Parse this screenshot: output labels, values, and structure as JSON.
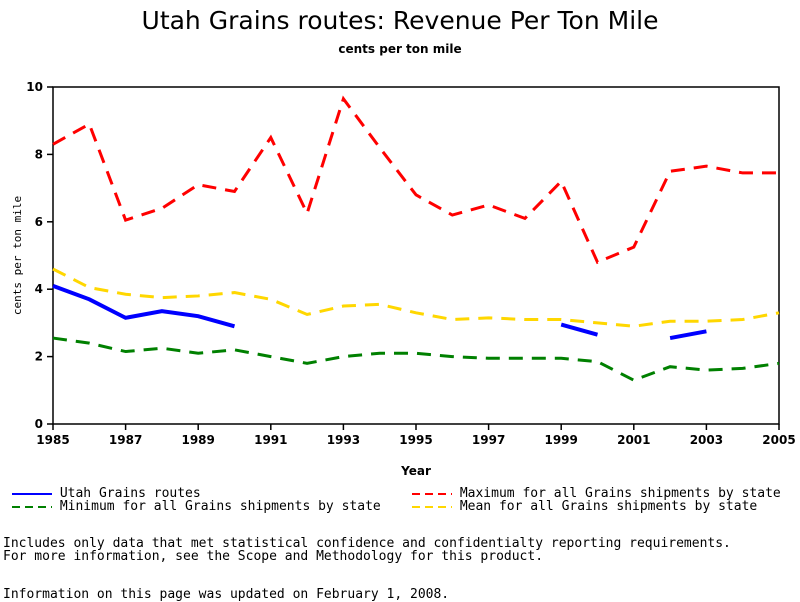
{
  "chart_data": {
    "type": "line",
    "title": "Utah Grains routes: Revenue Per Ton Mile",
    "subtitle": "cents per ton mile",
    "xlabel": "Year",
    "ylabel": "cents per ton mile",
    "xlim": [
      1985,
      2005
    ],
    "ylim": [
      0,
      10
    ],
    "xticks": [
      "1985",
      "1987",
      "1989",
      "1991",
      "1993",
      "1995",
      "1997",
      "1999",
      "2001",
      "2003",
      "2005"
    ],
    "yticks": [
      "0",
      "2",
      "4",
      "6",
      "8",
      "10"
    ],
    "grid": false,
    "legend_position": "bottom",
    "x": [
      1985,
      1986,
      1987,
      1988,
      1989,
      1990,
      1991,
      1992,
      1993,
      1994,
      1995,
      1996,
      1997,
      1998,
      1999,
      2000,
      2001,
      2002,
      2003,
      2004,
      2005
    ],
    "series": [
      {
        "name": "Utah Grains routes",
        "color": "#0000ff",
        "style": "solid",
        "values": [
          4.1,
          3.7,
          3.15,
          3.35,
          3.2,
          2.9,
          null,
          null,
          null,
          null,
          null,
          null,
          null,
          null,
          2.95,
          2.65,
          null,
          2.55,
          2.75,
          null,
          null
        ]
      },
      {
        "name": "Maximum for all Grains shipments by state",
        "color": "#ff0000",
        "style": "dashed",
        "values": [
          8.3,
          8.9,
          6.05,
          6.4,
          7.1,
          6.9,
          8.5,
          6.25,
          9.65,
          8.2,
          6.8,
          6.2,
          6.5,
          6.1,
          7.2,
          4.8,
          5.25,
          7.5,
          7.65,
          7.45,
          7.45
        ]
      },
      {
        "name": "Minimum for all Grains shipments by state",
        "color": "#008000",
        "style": "dashed",
        "values": [
          2.55,
          2.4,
          2.15,
          2.25,
          2.1,
          2.2,
          2.0,
          1.8,
          2.0,
          2.1,
          2.1,
          2.0,
          1.95,
          1.95,
          1.95,
          1.85,
          1.3,
          1.7,
          1.6,
          1.65,
          1.8
        ]
      },
      {
        "name": "Mean for all Grains shipments by state",
        "color": "#ffd700",
        "style": "dashed",
        "values": [
          4.6,
          4.05,
          3.85,
          3.75,
          3.8,
          3.9,
          3.7,
          3.25,
          3.5,
          3.55,
          3.3,
          3.1,
          3.15,
          3.1,
          3.1,
          3.0,
          2.9,
          3.05,
          3.05,
          3.1,
          3.3
        ]
      }
    ]
  },
  "notes": {
    "line1": "Includes only data that met statistical confidence and confidentialty reporting requirements.",
    "line2": "For more information, see the Scope and Methodology for this product.",
    "line3": "Information on this page was updated on February 1, 2008."
  }
}
